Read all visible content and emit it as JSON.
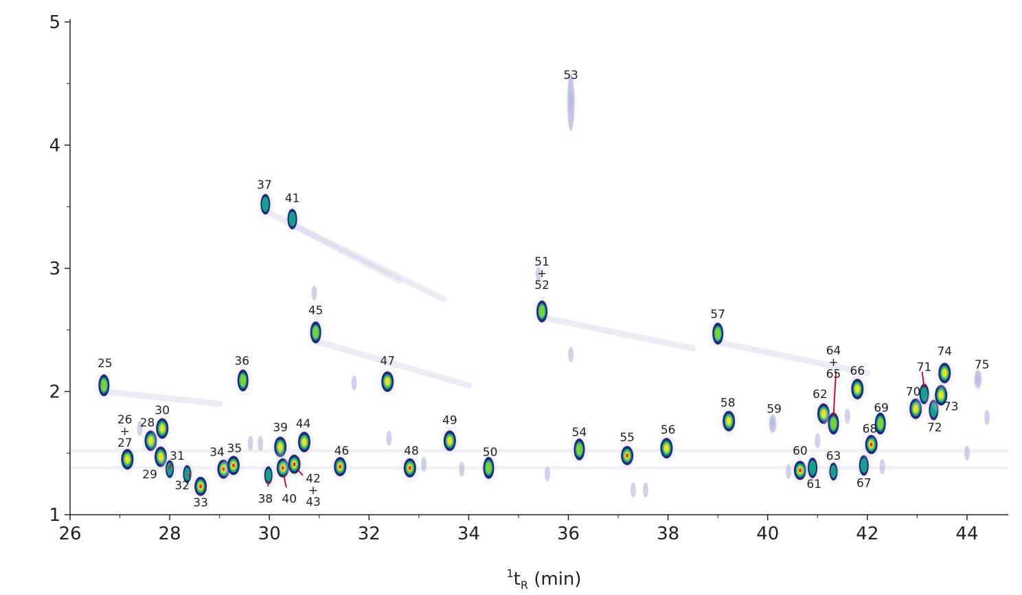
{
  "chart_data": {
    "type": "scatter",
    "description_type": "GCxGC 2D chromatogram contour plot",
    "x_axis": {
      "label_sup": "1",
      "label_main": "t",
      "label_sub": "R",
      "label_unit": " (min)",
      "range": [
        26,
        44.8
      ],
      "ticks": [
        26,
        28,
        30,
        32,
        34,
        36,
        38,
        40,
        42,
        44
      ]
    },
    "y_axis": {
      "label": "",
      "range": [
        1,
        5
      ],
      "ticks": [
        1,
        2,
        3,
        4,
        5
      ],
      "minor_ticks": [
        1.5,
        2.5,
        3.5,
        4.5
      ]
    },
    "colors": {
      "outer": "#1f2a7a",
      "mid": "#1aa08a",
      "inner": "#7ccf3c",
      "core": "#e8e032",
      "hot": "#e0301c",
      "leader": "#c8102e",
      "halo": "#c9cbe6"
    },
    "peaks": [
      {
        "id": "25",
        "x": 26.68,
        "y": 2.05,
        "lx": 26.7,
        "ly": 2.23,
        "i": 2
      },
      {
        "id": "26+27",
        "x": 27.15,
        "y": 1.45,
        "lx": 27.1,
        "ly": 1.68,
        "i": 3,
        "stack": [
          "26",
          "+",
          "27"
        ]
      },
      {
        "id": "28",
        "x": 27.62,
        "y": 1.6,
        "lx": 27.55,
        "ly": 1.75,
        "i": 3
      },
      {
        "id": "29",
        "x": 27.82,
        "y": 1.47,
        "lx": 27.6,
        "ly": 1.33,
        "i": 3,
        "below": true
      },
      {
        "id": "30",
        "x": 27.85,
        "y": 1.7,
        "lx": 27.85,
        "ly": 1.85,
        "i": 3
      },
      {
        "id": "31",
        "x": 28.0,
        "y": 1.37,
        "lx": 28.15,
        "ly": 1.48,
        "i": 0,
        "leader": [
          [
            27.98,
            1.37
          ],
          [
            28.03,
            1.41
          ]
        ]
      },
      {
        "id": "32",
        "x": 28.35,
        "y": 1.33,
        "lx": 28.25,
        "ly": 1.24,
        "i": 0,
        "below": true,
        "leader": [
          [
            28.38,
            1.31
          ],
          [
            28.43,
            1.35
          ]
        ]
      },
      {
        "id": "33",
        "x": 28.62,
        "y": 1.23,
        "lx": 28.62,
        "ly": 1.1,
        "i": 4,
        "below": true
      },
      {
        "id": "34",
        "x": 29.08,
        "y": 1.37,
        "lx": 28.95,
        "ly": 1.51,
        "i": 4
      },
      {
        "id": "35",
        "x": 29.28,
        "y": 1.4,
        "lx": 29.3,
        "ly": 1.54,
        "i": 4
      },
      {
        "id": "36",
        "x": 29.47,
        "y": 2.09,
        "lx": 29.45,
        "ly": 2.25,
        "i": 2
      },
      {
        "id": "37",
        "x": 29.92,
        "y": 3.52,
        "lx": 29.9,
        "ly": 3.68,
        "i": 1
      },
      {
        "id": "38",
        "x": 29.98,
        "y": 1.32,
        "lx": 29.92,
        "ly": 1.13,
        "i": 0,
        "below": true,
        "leader": [
          [
            29.97,
            1.23
          ],
          [
            29.99,
            1.27
          ]
        ]
      },
      {
        "id": "39",
        "x": 30.22,
        "y": 1.55,
        "lx": 30.22,
        "ly": 1.71,
        "i": 3
      },
      {
        "id": "40",
        "x": 30.27,
        "y": 1.38,
        "lx": 30.4,
        "ly": 1.13,
        "i": 4,
        "below": true,
        "leader": [
          [
            30.34,
            1.22
          ],
          [
            30.29,
            1.32
          ]
        ]
      },
      {
        "id": "41",
        "x": 30.46,
        "y": 3.4,
        "lx": 30.46,
        "ly": 3.57,
        "i": 1
      },
      {
        "id": "42+43",
        "x": 30.5,
        "y": 1.41,
        "lx": 30.88,
        "ly": 1.2,
        "i": 4,
        "below": true,
        "stack": [
          "42",
          "+",
          "43"
        ],
        "leader": [
          [
            30.58,
            1.36
          ],
          [
            30.67,
            1.32
          ]
        ]
      },
      {
        "id": "44",
        "x": 30.7,
        "y": 1.59,
        "lx": 30.68,
        "ly": 1.74,
        "i": 3
      },
      {
        "id": "45",
        "x": 30.93,
        "y": 2.48,
        "lx": 30.93,
        "ly": 2.66,
        "i": 2
      },
      {
        "id": "46",
        "x": 31.42,
        "y": 1.39,
        "lx": 31.45,
        "ly": 1.52,
        "i": 4
      },
      {
        "id": "47",
        "x": 32.37,
        "y": 2.08,
        "lx": 32.37,
        "ly": 2.25,
        "i": 3
      },
      {
        "id": "48",
        "x": 32.82,
        "y": 1.38,
        "lx": 32.85,
        "ly": 1.52,
        "i": 4
      },
      {
        "id": "49",
        "x": 33.62,
        "y": 1.6,
        "lx": 33.62,
        "ly": 1.77,
        "i": 3
      },
      {
        "id": "50",
        "x": 34.4,
        "y": 1.38,
        "lx": 34.43,
        "ly": 1.51,
        "i": 2
      },
      {
        "id": "51+52",
        "x": 35.47,
        "y": 2.65,
        "lx": 35.47,
        "ly": 2.96,
        "i": 2,
        "stack": [
          "51",
          "+",
          "52"
        ]
      },
      {
        "id": "53",
        "x": 36.05,
        "y": 4.35,
        "lx": 36.05,
        "ly": 4.57,
        "i": 0,
        "faint": true
      },
      {
        "id": "54",
        "x": 36.22,
        "y": 1.53,
        "lx": 36.22,
        "ly": 1.67,
        "i": 2
      },
      {
        "id": "55",
        "x": 37.18,
        "y": 1.48,
        "lx": 37.18,
        "ly": 1.63,
        "i": 4
      },
      {
        "id": "56",
        "x": 37.97,
        "y": 1.54,
        "lx": 38.0,
        "ly": 1.69,
        "i": 3
      },
      {
        "id": "57",
        "x": 39.0,
        "y": 2.47,
        "lx": 39.0,
        "ly": 2.63,
        "i": 2
      },
      {
        "id": "58",
        "x": 39.22,
        "y": 1.76,
        "lx": 39.2,
        "ly": 1.91,
        "i": 3
      },
      {
        "id": "59",
        "x": 40.1,
        "y": 1.74,
        "lx": 40.13,
        "ly": 1.86,
        "i": 0,
        "faint": true
      },
      {
        "id": "60",
        "x": 40.65,
        "y": 1.36,
        "lx": 40.65,
        "ly": 1.52,
        "i": 4
      },
      {
        "id": "61",
        "x": 40.9,
        "y": 1.38,
        "lx": 40.93,
        "ly": 1.25,
        "i": 1,
        "below": true
      },
      {
        "id": "62",
        "x": 41.12,
        "y": 1.82,
        "lx": 41.05,
        "ly": 1.98,
        "i": 3
      },
      {
        "id": "63",
        "x": 41.32,
        "y": 1.35,
        "lx": 41.32,
        "ly": 1.48,
        "i": 0
      },
      {
        "id": "64+65",
        "x": 41.32,
        "y": 1.74,
        "lx": 41.32,
        "ly": 2.24,
        "i": 2,
        "stack": [
          "64",
          "+",
          "65"
        ],
        "leader": [
          [
            41.32,
            1.8
          ],
          [
            41.37,
            2.16
          ]
        ]
      },
      {
        "id": "66",
        "x": 41.8,
        "y": 2.02,
        "lx": 41.8,
        "ly": 2.17,
        "i": 3
      },
      {
        "id": "67",
        "x": 41.93,
        "y": 1.4,
        "lx": 41.93,
        "ly": 1.26,
        "i": 1,
        "below": true
      },
      {
        "id": "68",
        "x": 42.08,
        "y": 1.57,
        "lx": 42.05,
        "ly": 1.7,
        "i": 4
      },
      {
        "id": "69",
        "x": 42.26,
        "y": 1.74,
        "lx": 42.28,
        "ly": 1.87,
        "i": 2
      },
      {
        "id": "70",
        "x": 42.97,
        "y": 1.86,
        "lx": 42.92,
        "ly": 2.0,
        "i": 3
      },
      {
        "id": "71",
        "x": 43.14,
        "y": 1.98,
        "lx": 43.14,
        "ly": 2.2,
        "i": 1,
        "leader": [
          [
            43.14,
            2.03
          ],
          [
            43.1,
            2.16
          ]
        ]
      },
      {
        "id": "72",
        "x": 43.33,
        "y": 1.85,
        "lx": 43.35,
        "ly": 1.71,
        "i": 1,
        "below": true
      },
      {
        "id": "73",
        "x": 43.48,
        "y": 1.97,
        "lx": 43.68,
        "ly": 1.88,
        "i": 3
      },
      {
        "id": "74",
        "x": 43.55,
        "y": 2.15,
        "lx": 43.55,
        "ly": 2.33,
        "i": 3
      },
      {
        "id": "75",
        "x": 44.22,
        "y": 2.1,
        "lx": 44.3,
        "ly": 2.22,
        "i": 0,
        "faint": true
      }
    ],
    "background_spots": [
      [
        27.4,
        1.7
      ],
      [
        29.62,
        1.58
      ],
      [
        29.82,
        1.58
      ],
      [
        31.7,
        2.07
      ],
      [
        32.4,
        1.62
      ],
      [
        33.1,
        1.41
      ],
      [
        33.86,
        1.37
      ],
      [
        35.58,
        1.33
      ],
      [
        37.3,
        1.2
      ],
      [
        37.55,
        1.2
      ],
      [
        40.42,
        1.35
      ],
      [
        41.6,
        1.8
      ],
      [
        42.3,
        1.39
      ],
      [
        44.4,
        1.79
      ],
      [
        36.05,
        2.3
      ],
      [
        30.9,
        2.8
      ],
      [
        35.4,
        2.95
      ],
      [
        41.0,
        1.6
      ],
      [
        44.0,
        1.5
      ]
    ],
    "streaks": [
      [
        [
          30.0,
          3.45
        ],
        [
          32.6,
          2.9
        ]
      ],
      [
        [
          30.5,
          3.35
        ],
        [
          33.5,
          2.75
        ]
      ],
      [
        [
          31.0,
          2.4
        ],
        [
          34.0,
          2.05
        ]
      ],
      [
        [
          35.5,
          2.6
        ],
        [
          38.5,
          2.35
        ]
      ],
      [
        [
          39.0,
          2.4
        ],
        [
          42.0,
          2.15
        ]
      ],
      [
        [
          26.7,
          2.0
        ],
        [
          29.0,
          1.9
        ]
      ],
      [
        [
          26.0,
          1.52
        ],
        [
          44.8,
          1.52
        ]
      ],
      [
        [
          26.0,
          1.38
        ],
        [
          44.8,
          1.38
        ]
      ]
    ]
  }
}
